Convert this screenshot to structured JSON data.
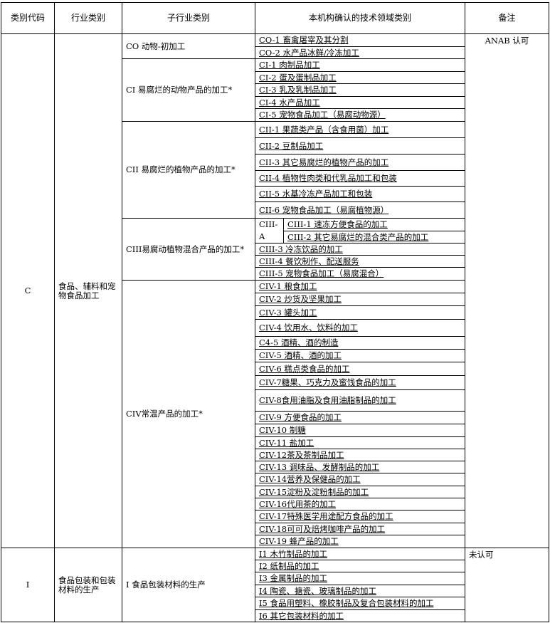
{
  "headers": [
    "类别代码",
    "行业类别",
    "子行业类别",
    "本机构确认的技术领域类别",
    "备注"
  ],
  "groups": [
    {
      "code": "C",
      "industry": "食品、辅料和宠物食品加工",
      "remark": "ANAB 认可",
      "subs": [
        {
          "label": "CO 动物-初加工",
          "items": [
            "CO-1 畜禽屠宰及其分割",
            "CO-2  水产品冰鲜/冷冻加工"
          ]
        },
        {
          "label": "CI 易腐烂的动物产品的加工*",
          "items": [
            "CI-1 肉制品加工",
            "CI-2 蛋及蛋制品加工",
            "CI-3 乳及乳制品加工",
            "CI-4 水产品加工",
            "CI-5  宠物食品加工（易腐动物源）"
          ]
        },
        {
          "label": "CII 易腐烂的植物产品的加工*",
          "items": [
            "CII-1 果蔬类产品（含食用菌）加工",
            "CII-2 豆制品加工",
            "CII-3  其它易腐烂的植物产品的加工",
            "CII-4  植物性肉类和代乳品加工和包装",
            "CII-5 水基冷冻产品加工和包装",
            "CII-6  宠物食品加工（易腐植物源）"
          ]
        },
        {
          "label": "CIII易腐动植物混合产品的加工*",
          "subgroup": "CIII-A",
          "subgroup_items": [
            "CIII-1 速冻方便食品的加工",
            "CIII-2 其它易腐烂的混合类产品的加工"
          ],
          "items": [
            "CIII-3 冷冻饮品的加工",
            "CIII-4  餐饮制作、配送服务",
            "CIII-5  宠物食品加工（易腐混合）"
          ]
        },
        {
          "label": "CIV常温产品的加工*",
          "items": [
            "CIV-1 粮食加工",
            "CIV-2 炒货及坚果加工",
            "CIV-3 罐头加工",
            "CIV-4 饮用水、饮料的加工",
            "C4-5 酒精、酒的制造",
            "CIV-5 酒精、酒的加工",
            "CIV-6 糕点类食品的加工",
            "CIV-7糖果、巧克力及蜜饯食品的加工",
            "CIV-8食用油脂及食用油脂制品的加工",
            "CIV-9  方便食品的加工",
            "CIV-10  制糖",
            "CIV-11  盐加工",
            "CIV-12茶及茶制品加工",
            "CIV-13  调味品、发酵制品的加工",
            "CIV-14营养及保健品的加工",
            "CIV-15淀粉及淀粉制品的加工",
            "CIV-16代用茶的加工",
            "CIV-17特殊医学用途配方食品的加工",
            "CIV-18可可及焙烤咖啡产品的加工",
            "CIV-19  蜂产品的加工"
          ]
        }
      ]
    },
    {
      "code": "I",
      "industry": "食品包装和包装材料的生产",
      "remark": "未认可",
      "subs": [
        {
          "label": "I 食品包装材料的生产",
          "items": [
            "I1 木竹制品的加工",
            "I2 纸制品的加工",
            "I3 金属制品的加工",
            "I4 陶瓷、搪瓷、玻璃制品的加工",
            "I5 食品用塑料、橡胶制品及复合包装材料的加工",
            "I6 其它包装材料的加工"
          ]
        }
      ]
    }
  ]
}
